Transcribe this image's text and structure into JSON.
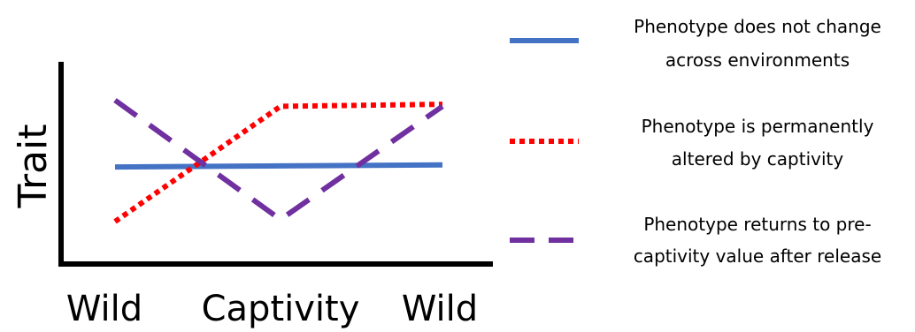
{
  "chart_data": {
    "type": "line",
    "title": "",
    "xlabel": "",
    "ylabel": "Trait",
    "categories": [
      "Wild",
      "Captivity",
      "Wild"
    ],
    "ylim": [
      0,
      10
    ],
    "grid": false,
    "legend_position": "right",
    "series": [
      {
        "name": "Phenotype does not change across environments",
        "legend_lines": [
          "Phenotype does not change",
          "across environments"
        ],
        "values": [
          4.8,
          4.85,
          4.9
        ],
        "color": "#4472c4",
        "style": "solid"
      },
      {
        "name": "Phenotype is permanently altered by captivity",
        "legend_lines": [
          "Phenotype is permanently",
          "altered by captivity"
        ],
        "values": [
          2.1,
          7.8,
          7.9
        ],
        "color": "#ff0000",
        "style": "dotted"
      },
      {
        "name": "Phenotype returns to pre-captivity value after release",
        "legend_lines": [
          "Phenotype returns to pre-",
          "captivity value after release"
        ],
        "values": [
          8.1,
          2.2,
          7.8
        ],
        "color": "#7030a0",
        "style": "dashed"
      }
    ]
  }
}
